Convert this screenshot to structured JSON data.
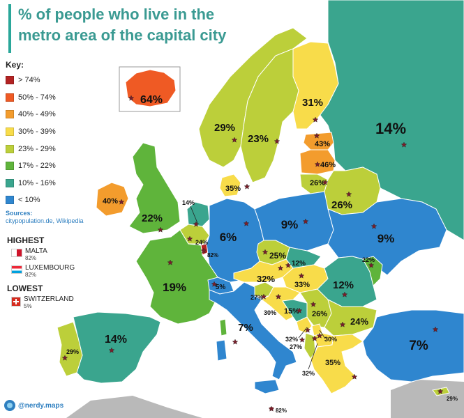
{
  "title": {
    "line1": "% of people who live in the",
    "line2": "metro area of the capital city"
  },
  "key": {
    "heading": "Key:",
    "items": [
      {
        "label": "> 74%",
        "color": "#b22222"
      },
      {
        "label": "50% - 74%",
        "color": "#ef5a24"
      },
      {
        "label": "40% - 49%",
        "color": "#f39c2d"
      },
      {
        "label": "30% - 39%",
        "color": "#f8dc4a"
      },
      {
        "label": "23% - 29%",
        "color": "#bccf3a"
      },
      {
        "label": "17% - 22%",
        "color": "#5fb43b"
      },
      {
        "label": "10% - 16%",
        "color": "#3aa58e"
      },
      {
        "label": "< 10%",
        "color": "#2f86cf"
      }
    ]
  },
  "sources": {
    "label": "Sources:",
    "text": "citypopulation.de, Wikipedia"
  },
  "highest": {
    "heading": "HIGHEST",
    "items": [
      {
        "name": "MALTA",
        "pct": "82%"
      },
      {
        "name": "LUXEMBOURG",
        "pct": "82%"
      }
    ]
  },
  "lowest": {
    "heading": "LOWEST",
    "items": [
      {
        "name": "SWITZERLAND",
        "pct": "5%"
      }
    ]
  },
  "credit": "@nerdy.maps",
  "colors": {
    "sea": "#ffffff",
    "title": "#3a9a92",
    "outside_land": "#b9b9b9",
    "border": "#ffffff"
  },
  "countries": [
    {
      "id": "iceland",
      "value": "64%",
      "color": "#ef5a24"
    },
    {
      "id": "norway",
      "value": "29%",
      "color": "#bccf3a"
    },
    {
      "id": "sweden",
      "value": "23%",
      "color": "#bccf3a"
    },
    {
      "id": "finland",
      "value": "31%",
      "color": "#f8dc4a"
    },
    {
      "id": "russia",
      "value": "14%",
      "color": "#3aa58e"
    },
    {
      "id": "estonia",
      "value": "43%",
      "color": "#f39c2d"
    },
    {
      "id": "latvia",
      "value": "46%",
      "color": "#f39c2d"
    },
    {
      "id": "lithuania",
      "value": "26%",
      "color": "#bccf3a"
    },
    {
      "id": "belarus",
      "value": "26%",
      "color": "#bccf3a"
    },
    {
      "id": "denmark",
      "value": "35%",
      "color": "#f8dc4a"
    },
    {
      "id": "ireland",
      "value": "40%",
      "color": "#f39c2d"
    },
    {
      "id": "uk",
      "value": "22%",
      "color": "#5fb43b"
    },
    {
      "id": "netherlands",
      "value": "14%",
      "color": "#3aa58e"
    },
    {
      "id": "belgium",
      "value": "24%",
      "color": "#bccf3a"
    },
    {
      "id": "luxembourg",
      "value": "82%",
      "color": "#b22222"
    },
    {
      "id": "germany",
      "value": "6%",
      "color": "#2f86cf"
    },
    {
      "id": "poland",
      "value": "9%",
      "color": "#2f86cf"
    },
    {
      "id": "ukraine",
      "value": "9%",
      "color": "#2f86cf"
    },
    {
      "id": "france",
      "value": "19%",
      "color": "#5fb43b"
    },
    {
      "id": "switzerland",
      "value": "5%",
      "color": "#2f86cf"
    },
    {
      "id": "czechia",
      "value": "25%",
      "color": "#bccf3a"
    },
    {
      "id": "slovakia",
      "value": "12%",
      "color": "#3aa58e"
    },
    {
      "id": "austria",
      "value": "32%",
      "color": "#f8dc4a"
    },
    {
      "id": "hungary",
      "value": "33%",
      "color": "#f8dc4a"
    },
    {
      "id": "moldova",
      "value": "22%",
      "color": "#5fb43b"
    },
    {
      "id": "romania",
      "value": "12%",
      "color": "#3aa58e"
    },
    {
      "id": "slovenia",
      "value": "27%",
      "color": "#bccf3a"
    },
    {
      "id": "croatia",
      "value": "30%",
      "color": "#f8dc4a"
    },
    {
      "id": "bosnia",
      "value": "15%",
      "color": "#3aa58e"
    },
    {
      "id": "serbia",
      "value": "26%",
      "color": "#bccf3a"
    },
    {
      "id": "bulgaria",
      "value": "24%",
      "color": "#bccf3a"
    },
    {
      "id": "montenegro",
      "value": "32%",
      "color": "#f8dc4a"
    },
    {
      "id": "kosovo",
      "value": "30%",
      "color": "#f8dc4a"
    },
    {
      "id": "albania",
      "value": "27%",
      "color": "#bccf3a"
    },
    {
      "id": "north_macedonia",
      "value": "32%",
      "color": "#f8dc4a"
    },
    {
      "id": "greece",
      "value": "35%",
      "color": "#f8dc4a"
    },
    {
      "id": "turkey",
      "value": "7%",
      "color": "#2f86cf"
    },
    {
      "id": "italy",
      "value": "7%",
      "color": "#2f86cf"
    },
    {
      "id": "spain",
      "value": "14%",
      "color": "#3aa58e"
    },
    {
      "id": "portugal",
      "value": "29%",
      "color": "#bccf3a"
    },
    {
      "id": "malta",
      "value": "82%",
      "color": "#b22222"
    },
    {
      "id": "cyprus",
      "value": "29%",
      "color": "#bccf3a"
    }
  ]
}
